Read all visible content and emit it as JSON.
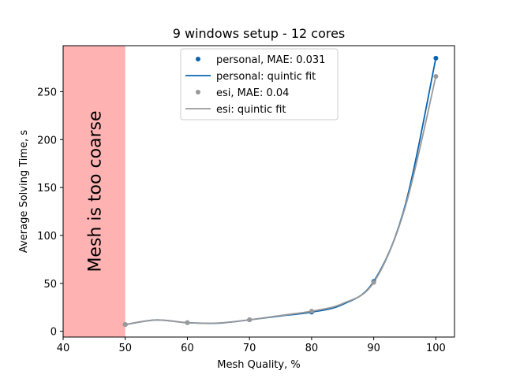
{
  "chart_data": {
    "type": "line",
    "title": "9 windows setup - 12 cores",
    "xlabel": "Mesh Quality, %",
    "ylabel": "Average Solving Time, s",
    "xlim": [
      40,
      103
    ],
    "ylim": [
      -6,
      298
    ],
    "xticks": [
      40,
      50,
      60,
      70,
      80,
      90,
      100
    ],
    "yticks": [
      0,
      50,
      100,
      150,
      200,
      250
    ],
    "grid": false,
    "legend_position": "top-center",
    "shaded_region": {
      "x_range": [
        40,
        50
      ],
      "label": "Mesh is too coarse",
      "color": "#ffb2b2"
    },
    "series": [
      {
        "name": "personal, MAE: 0.031",
        "kind": "points",
        "color": "#0864b1",
        "x": [
          50,
          60,
          70,
          80,
          90,
          100
        ],
        "y": [
          7,
          9,
          12,
          20,
          52,
          285
        ]
      },
      {
        "name": "personal: quintic fit",
        "kind": "fit",
        "color": "#0864b1",
        "x": [
          50,
          55,
          60,
          65,
          70,
          75,
          80,
          85,
          90,
          95,
          100
        ],
        "y": [
          7,
          11.8,
          9,
          8.5,
          12,
          16,
          20,
          28,
          52,
          130,
          285
        ]
      },
      {
        "name": "esi, MAE: 0.04",
        "kind": "points",
        "color": "#999999",
        "x": [
          50,
          60,
          70,
          80,
          90,
          100
        ],
        "y": [
          7,
          9,
          12,
          21,
          51,
          266
        ]
      },
      {
        "name": "esi: quintic fit",
        "kind": "fit",
        "color": "#999999",
        "x": [
          50,
          55,
          60,
          65,
          70,
          75,
          80,
          85,
          90,
          95,
          100
        ],
        "y": [
          7,
          11.8,
          9,
          8.7,
          12,
          16.5,
          21,
          29,
          51,
          128,
          266
        ]
      }
    ]
  }
}
